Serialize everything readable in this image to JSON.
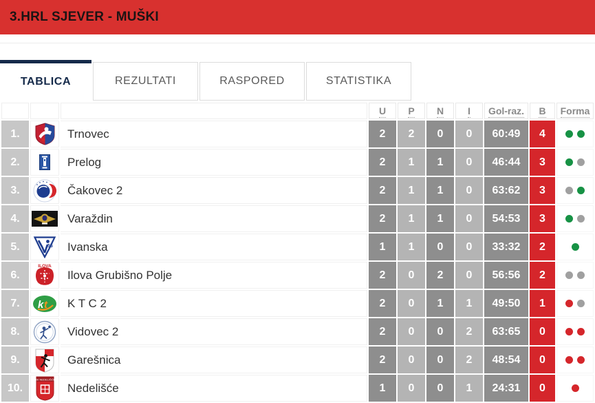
{
  "header": {
    "title": "3.HRL SJEVER - MUŠKI"
  },
  "tabs": [
    {
      "label": "TABLICA",
      "active": true
    },
    {
      "label": "REZULTATI",
      "active": false
    },
    {
      "label": "RASPORED",
      "active": false
    },
    {
      "label": "STATISTIKA",
      "active": false
    }
  ],
  "table": {
    "columns": [
      "U",
      "P",
      "N",
      "I",
      "Gol-raz.",
      "B",
      "Forma"
    ],
    "rows": [
      {
        "pos": "1.",
        "team": "Trnovec",
        "logo": "trnovec",
        "u": "2",
        "p": "2",
        "n": "0",
        "i": "0",
        "gol": "60:49",
        "b": "4",
        "forma": [
          "win",
          "win"
        ]
      },
      {
        "pos": "2.",
        "team": "Prelog",
        "logo": "prelog",
        "u": "2",
        "p": "1",
        "n": "1",
        "i": "0",
        "gol": "46:44",
        "b": "3",
        "forma": [
          "win",
          "draw"
        ]
      },
      {
        "pos": "3.",
        "team": "Čakovec 2",
        "logo": "cakovec",
        "u": "2",
        "p": "1",
        "n": "1",
        "i": "0",
        "gol": "63:62",
        "b": "3",
        "forma": [
          "draw",
          "win"
        ]
      },
      {
        "pos": "4.",
        "team": "Varaždin",
        "logo": "varazdin",
        "u": "2",
        "p": "1",
        "n": "1",
        "i": "0",
        "gol": "54:53",
        "b": "3",
        "forma": [
          "win",
          "draw"
        ]
      },
      {
        "pos": "5.",
        "team": "Ivanska",
        "logo": "ivanska",
        "u": "1",
        "p": "1",
        "n": "0",
        "i": "0",
        "gol": "33:32",
        "b": "2",
        "forma": [
          "win"
        ]
      },
      {
        "pos": "6.",
        "team": "Ilova Grubišno Polje",
        "logo": "ilova",
        "u": "2",
        "p": "0",
        "n": "2",
        "i": "0",
        "gol": "56:56",
        "b": "2",
        "forma": [
          "draw",
          "draw"
        ]
      },
      {
        "pos": "7.",
        "team": "K T C 2",
        "logo": "ktc",
        "u": "2",
        "p": "0",
        "n": "1",
        "i": "1",
        "gol": "49:50",
        "b": "1",
        "forma": [
          "loss",
          "draw"
        ]
      },
      {
        "pos": "8.",
        "team": "Vidovec 2",
        "logo": "vidovec",
        "u": "2",
        "p": "0",
        "n": "0",
        "i": "2",
        "gol": "63:65",
        "b": "0",
        "forma": [
          "loss",
          "loss"
        ]
      },
      {
        "pos": "9.",
        "team": "Garešnica",
        "logo": "garesnica",
        "u": "2",
        "p": "0",
        "n": "0",
        "i": "2",
        "gol": "48:54",
        "b": "0",
        "forma": [
          "loss",
          "loss"
        ]
      },
      {
        "pos": "10.",
        "team": "Nedelišće",
        "logo": "nedelisce",
        "u": "1",
        "p": "0",
        "n": "0",
        "i": "1",
        "gol": "24:31",
        "b": "0",
        "forma": [
          "loss"
        ]
      }
    ]
  },
  "colors": {
    "accent_red": "#d8312f",
    "cell_red": "#d5262b",
    "cell_dark_gray": "#8e8e8e",
    "cell_light_gray": "#b4b4b4",
    "rank_gray": "#c7c7c7",
    "tab_navy": "#152a4a",
    "forma_win_green": "#179245",
    "forma_draw_gray": "#a0a0a0",
    "forma_loss_red": "#d5262b"
  }
}
